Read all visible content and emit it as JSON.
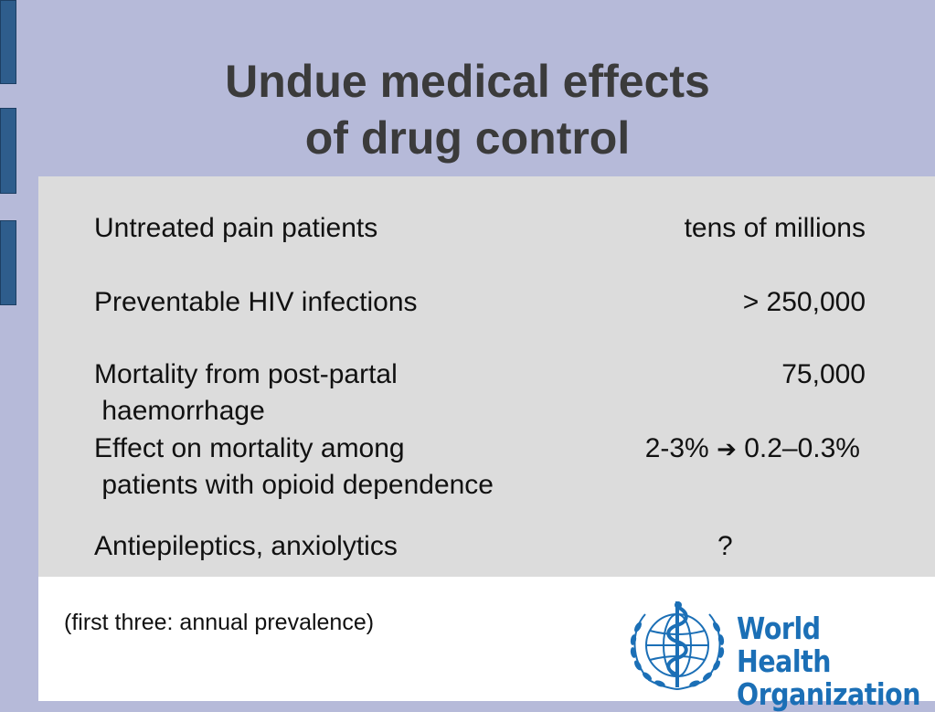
{
  "slide": {
    "title_line1": "Undue medical effects",
    "title_line2": "of drug control",
    "rows": [
      {
        "label_line1": "Untreated pain patients",
        "value": "tens of millions"
      },
      {
        "label_line1": "Preventable HIV infections",
        "value": "> 250,000"
      },
      {
        "label_line1": "Mortality from post-partal",
        "label_line2": " haemorrhage",
        "value": "75,000"
      },
      {
        "label_line1": "Effect on mortality among",
        "label_line2": " patients with opioid dependence",
        "value_before": "2-3%",
        "value_arrow": "➔",
        "value_after": "0.2–0.3%"
      },
      {
        "label_line1": "Antiepileptics, anxiolytics",
        "value": "?"
      }
    ],
    "footnote": "(first three: annual prevalence)"
  },
  "logo": {
    "line1": "World Health",
    "line2": "Organization",
    "emblem_icon": "who-emblem-icon",
    "color": "#1b6fb6"
  },
  "colors": {
    "background": "#b6bad9",
    "side_bars": "#2e5d8c",
    "content_panel": "#dcdcdc"
  }
}
